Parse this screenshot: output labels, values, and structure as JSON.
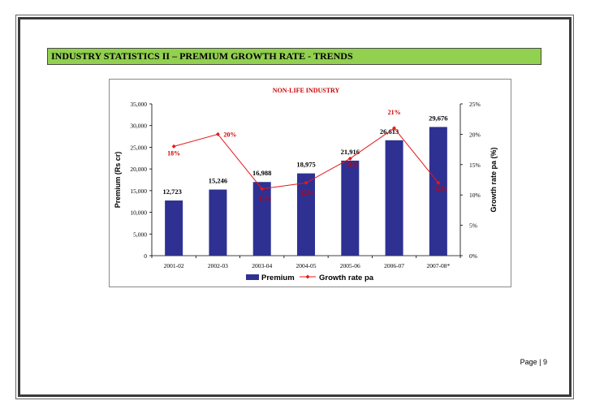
{
  "header": {
    "title": "INDUSTRY STATISTICS II – PREMIUM GROWTH RATE - TRENDS"
  },
  "footer": {
    "page_label": "Page | 9"
  },
  "colors": {
    "banner": "#92d050",
    "bars": "#2e3192",
    "line": "#e5181b",
    "line_labels": "#cc0000",
    "title": "#cc0000"
  },
  "chart_data": {
    "type": "bar",
    "title": "NON-LIFE INDUSTRY",
    "categories": [
      "2001-02",
      "2002-03",
      "2003-04",
      "2004-05",
      "2005-06",
      "2006-07",
      "2007-08*"
    ],
    "ylabel": "Premium (Rs cr)",
    "y2label": "Growth rate pa (%)",
    "ylim": [
      0,
      35000
    ],
    "y2lim": [
      0,
      25
    ],
    "yticks": [
      "0",
      "5,000",
      "10,000",
      "15,000",
      "20,000",
      "25,000",
      "30,000",
      "35,000"
    ],
    "y2ticks": [
      "0%",
      "5%",
      "10%",
      "15%",
      "20%",
      "25%"
    ],
    "grid": false,
    "legend": "bottom",
    "series": [
      {
        "name": "Premium",
        "type": "bar",
        "axis": "left",
        "values": [
          12723,
          15246,
          16988,
          18975,
          21916,
          26613,
          29676
        ],
        "labels": [
          "12,723",
          "15,246",
          "16,988",
          "18,975",
          "21,916",
          "26,613",
          "29,676"
        ]
      },
      {
        "name": "Growth rate pa",
        "type": "line",
        "axis": "right",
        "values": [
          18,
          20,
          11,
          12,
          16,
          21,
          12
        ],
        "labels": [
          "18%",
          "20%",
          "11%",
          "12%",
          "16%",
          "21%",
          "12%"
        ]
      }
    ]
  }
}
